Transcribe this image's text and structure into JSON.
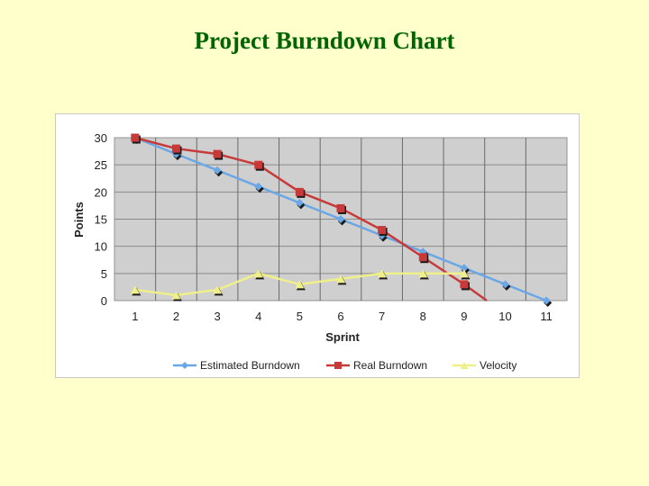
{
  "slide": {
    "title": "Project Burndown Chart"
  },
  "chart_data": {
    "type": "line",
    "title": "",
    "xlabel": "Sprint",
    "ylabel": "Points",
    "x": [
      1,
      2,
      3,
      4,
      5,
      6,
      7,
      8,
      9,
      10,
      11
    ],
    "ylim": [
      0,
      30
    ],
    "yticks": [
      0,
      5,
      10,
      15,
      20,
      25,
      30
    ],
    "grid": true,
    "legend": "bottom",
    "series": [
      {
        "name": "Estimated Burndown",
        "color": "#6AA7E6",
        "marker": "diamond",
        "values": [
          30,
          27,
          24,
          21,
          18,
          15,
          12,
          9,
          6,
          3,
          0
        ]
      },
      {
        "name": "Real Burndown",
        "color": "#C83A3A",
        "marker": "square",
        "values": [
          30,
          28,
          27,
          25,
          20,
          17,
          13,
          8,
          3,
          null,
          null
        ],
        "extends_to_zero_at": 9.55
      },
      {
        "name": "Velocity",
        "color": "#F0F08A",
        "marker": "triangle",
        "values": [
          2,
          1,
          2,
          5,
          3,
          4,
          5,
          5,
          5,
          null,
          null
        ]
      }
    ]
  }
}
